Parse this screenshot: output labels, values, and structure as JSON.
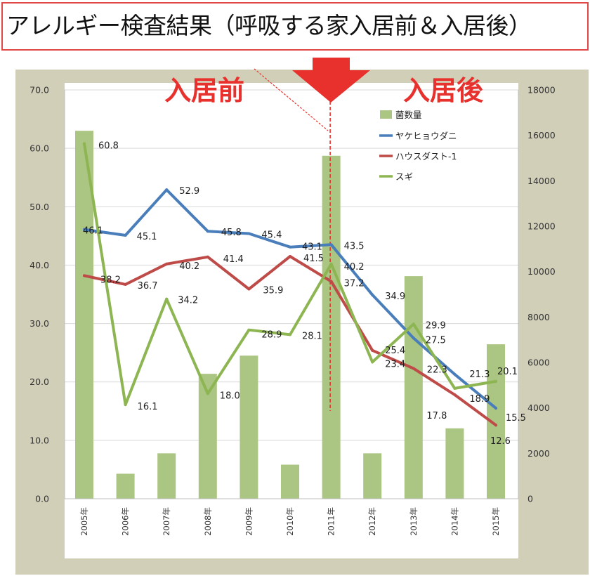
{
  "title": "アレルギー検査結果（呼吸する家入居前＆入居後）",
  "annotations": {
    "before_label": "入居前",
    "after_label": "入居後"
  },
  "colors": {
    "title_border": "#e04848",
    "annotation_red": "#e8302c",
    "chart_background": "#d2cfb9",
    "plot_background": "#ffffff",
    "gridline": "#d9d9d9",
    "axis_line": "#bfbfbf"
  },
  "chart_data": {
    "type": "bar",
    "categories": [
      "2005年",
      "2006年",
      "2007年",
      "2008年",
      "2009年",
      "2010年",
      "2011年",
      "2012年",
      "2013年",
      "2014年",
      "2015年"
    ],
    "series": [
      {
        "name": "菌数量",
        "type": "bar",
        "axis": "right",
        "color": "#abc582",
        "values": [
          16200,
          1100,
          2000,
          5500,
          6300,
          1500,
          15100,
          2000,
          9800,
          3100,
          6800
        ]
      },
      {
        "name": "ヤケヒョウダニ",
        "type": "line",
        "axis": "left",
        "color": "#4a7ebb",
        "values": [
          46.1,
          45.1,
          52.9,
          45.8,
          45.4,
          43.1,
          43.5,
          34.9,
          27.5,
          21.3,
          15.5
        ],
        "data_labels": [
          "46.1",
          "45.1",
          "52.9",
          "45.8",
          "45.4",
          "43.1",
          "43.5",
          "34.9",
          "27.5",
          "21.3",
          "15.5"
        ]
      },
      {
        "name": "ハウスダスト-1",
        "type": "line",
        "axis": "left",
        "color": "#be4b48",
        "values": [
          38.2,
          36.7,
          40.2,
          41.4,
          35.9,
          41.5,
          37.2,
          25.4,
          22.3,
          17.8,
          12.6
        ],
        "data_labels": [
          "38.2",
          "36.7",
          "40.2",
          "41.4",
          "35.9",
          "41.5",
          "37.2",
          "25.4",
          "22.3",
          "17.8",
          "12.6"
        ]
      },
      {
        "name": "スギ",
        "type": "line",
        "axis": "left",
        "color": "#8db552",
        "values": [
          60.8,
          16.1,
          34.2,
          18.0,
          28.9,
          28.1,
          40.2,
          23.4,
          29.9,
          18.9,
          20.1
        ],
        "data_labels": [
          "60.8",
          "16.1",
          "34.2",
          "18.0",
          "28.9",
          "28.1",
          "40.2",
          "23.4",
          "29.9",
          "18.9",
          "20.1"
        ]
      }
    ],
    "left_axis": {
      "min": 0,
      "max": 70,
      "ticks": [
        "0.0",
        "10.0",
        "20.0",
        "30.0",
        "40.0",
        "50.0",
        "60.0",
        "70.0"
      ]
    },
    "right_axis": {
      "min": 0,
      "max": 18000,
      "ticks": [
        "0",
        "2000",
        "4000",
        "6000",
        "8000",
        "10000",
        "12000",
        "14000",
        "16000",
        "18000"
      ]
    },
    "grid": true,
    "legend": "top-right",
    "vertical_marker_category": "2011年"
  }
}
